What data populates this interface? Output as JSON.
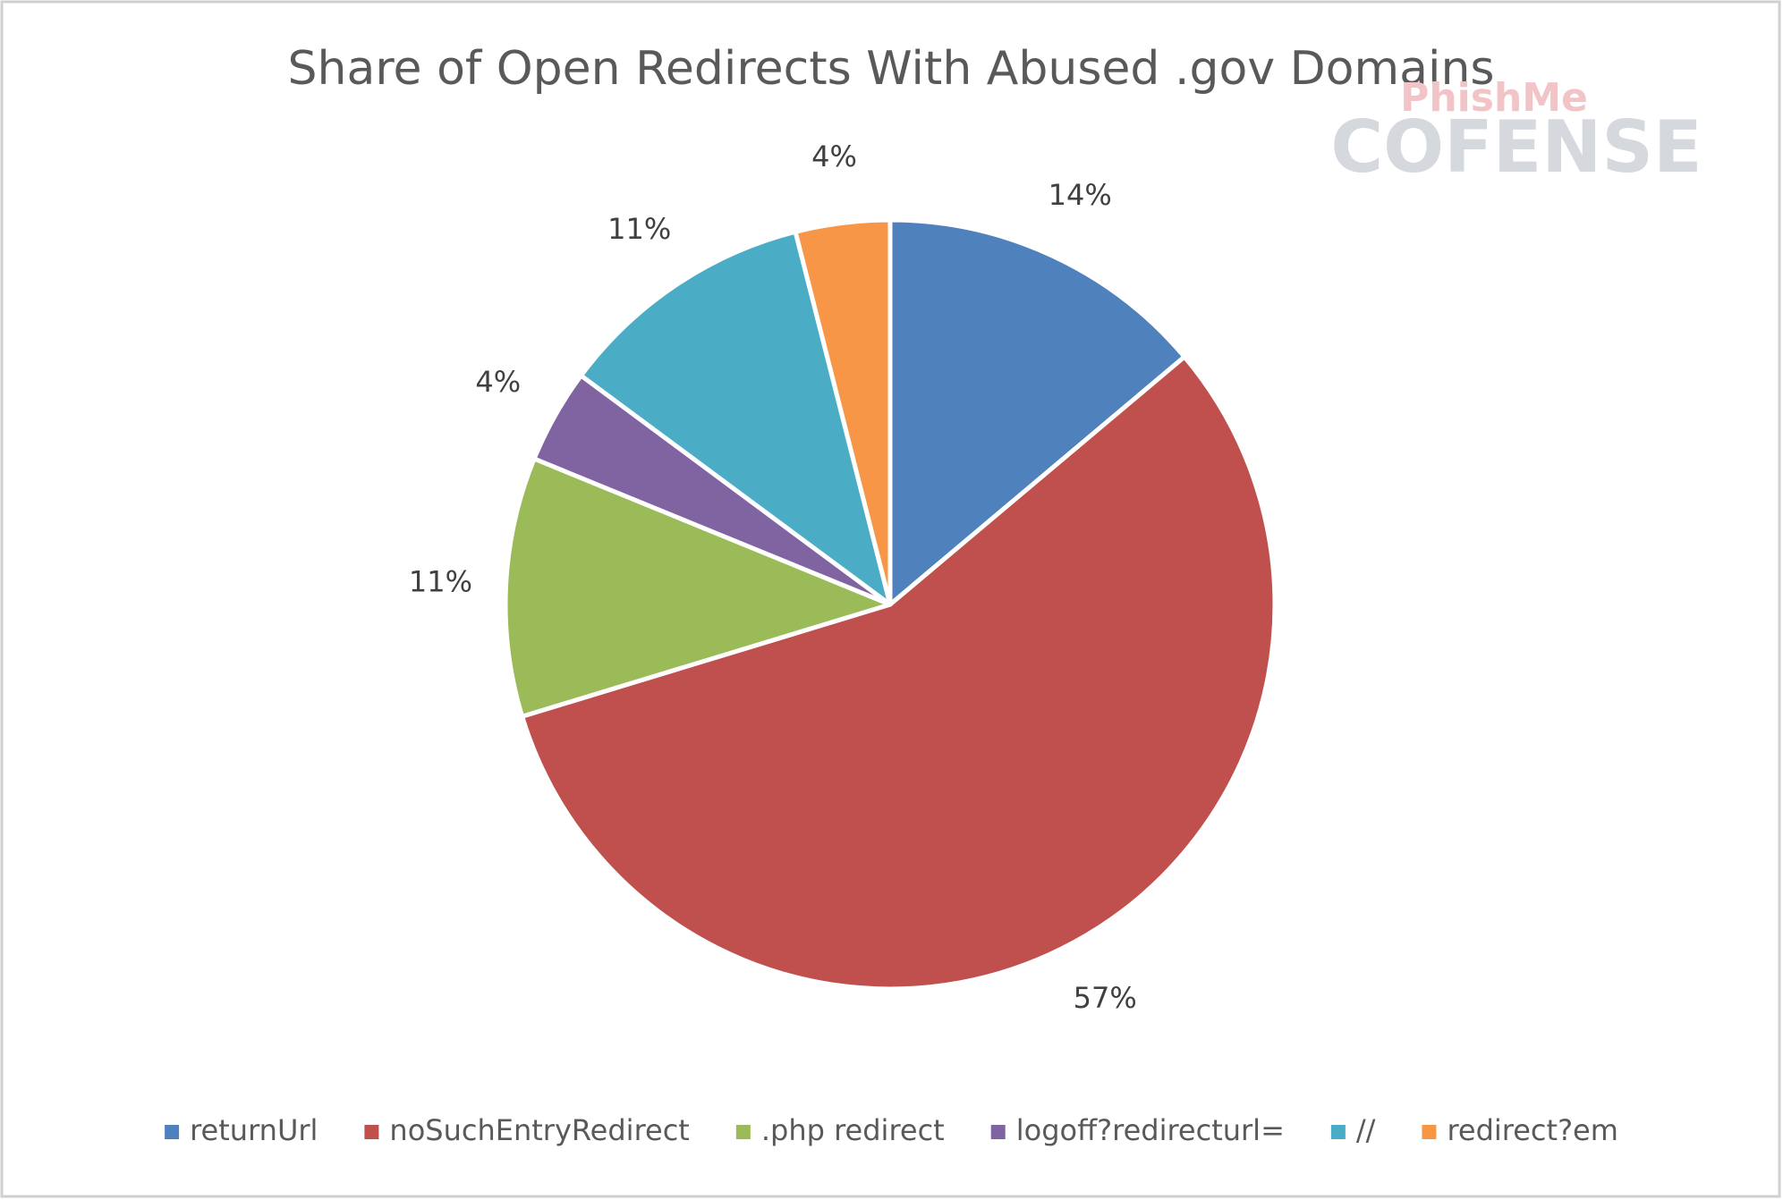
{
  "chart_data": {
    "type": "pie",
    "title": "Share of Open Redirects With Abused .gov Domains",
    "categories": [
      "returnUrl",
      "noSuchEntryRedirect",
      ".php redirect",
      "logoff?redirecturl=",
      "//",
      "redirect?em"
    ],
    "values": [
      14,
      57,
      11,
      4,
      11,
      4
    ],
    "value_labels": [
      "14%",
      "57%",
      "11%",
      "4%",
      "11%",
      "4%"
    ],
    "colors": [
      "#4f81bd",
      "#c0504d",
      "#9bbb59",
      "#8064a2",
      "#4bacc6",
      "#f79646"
    ],
    "legend": "bottom",
    "logo": [
      "PhishMe",
      "COFENSE"
    ]
  }
}
